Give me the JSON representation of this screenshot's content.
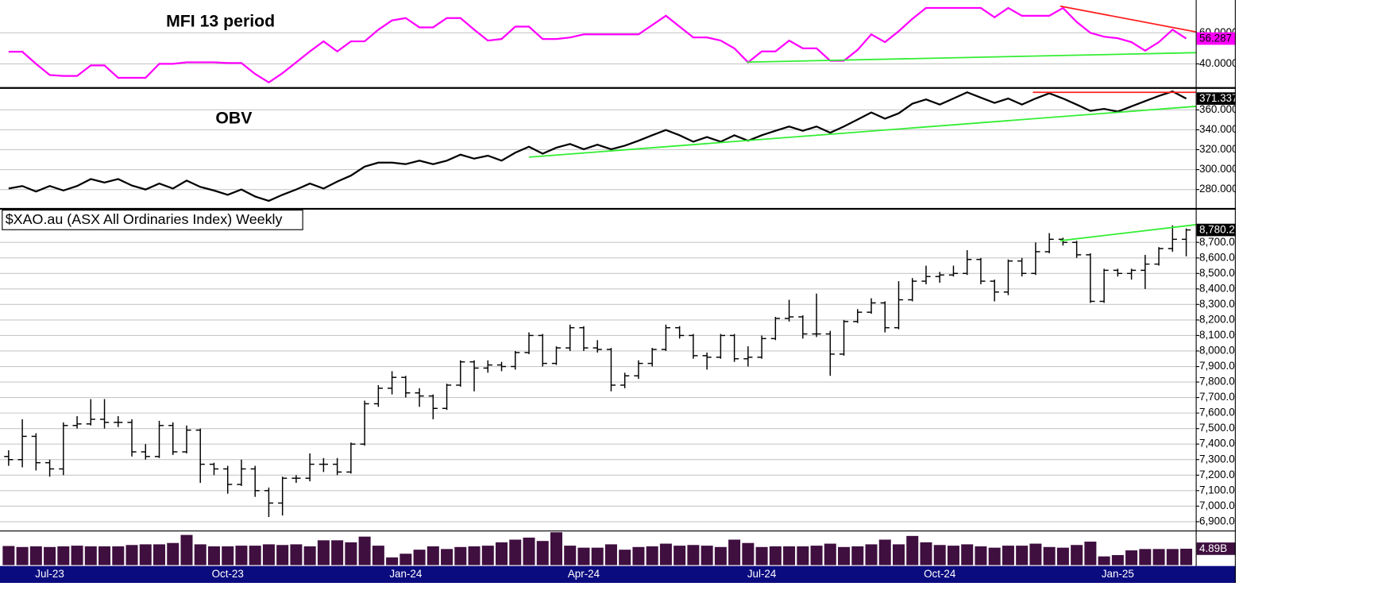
{
  "chart_data": [
    {
      "type": "line",
      "title": "MFI 13 period",
      "series": [
        {
          "color": "#ff00ff",
          "values": [
            47.8,
            47.8,
            40,
            32.8,
            32.2,
            32.2,
            39,
            39,
            31,
            31,
            31,
            40,
            40,
            41,
            41,
            41,
            40.5,
            40.5,
            33.5,
            28,
            34,
            41,
            48,
            54.5,
            48,
            54.5,
            54.5,
            62,
            68,
            69.5,
            63.5,
            63.5,
            69.5,
            69.5,
            62,
            55,
            56,
            64,
            64,
            56,
            56,
            57,
            59,
            59,
            59,
            59,
            59,
            65,
            71,
            64,
            57,
            57,
            55,
            50,
            41,
            48,
            48,
            55,
            50,
            50,
            42,
            42,
            49,
            59,
            54,
            61,
            69,
            76,
            76,
            76,
            76,
            76,
            70,
            76,
            71,
            71,
            71,
            76,
            67,
            60,
            57.5,
            56.5,
            54,
            48.5,
            54,
            62,
            56.287
          ]
        }
      ],
      "ylim": [
        25.6,
        80
      ],
      "yticks": [
        {
          "value": 40,
          "label": "40.0000"
        },
        {
          "value": 60,
          "label": "60.0000"
        }
      ],
      "grid": true,
      "last_label": {
        "value": 56.287,
        "label": "56.287"
      },
      "trendlines": [
        {
          "color": "#ff2020",
          "x": [
            76.8,
            86.7
          ],
          "values": [
            77.2,
            60.6
          ]
        },
        {
          "color": "#33ee33",
          "x": [
            53.9,
            86.7
          ],
          "values": [
            41.1,
            47.2
          ]
        }
      ]
    },
    {
      "type": "line",
      "title": "OBV",
      "series": [
        {
          "color": "#000000",
          "values": [
            281,
            283.5,
            278,
            283.5,
            279,
            283.5,
            290.5,
            287,
            290.5,
            284,
            280,
            286,
            281,
            289,
            282.6,
            279,
            274.7,
            280,
            273,
            268.6,
            274.7,
            280,
            286,
            281,
            288,
            294,
            303,
            307,
            307,
            305.5,
            309,
            305.5,
            309,
            315,
            311,
            314,
            309,
            317,
            323,
            316,
            322,
            325.7,
            320.4,
            325,
            320.4,
            324,
            329,
            334.5,
            339.8,
            334.5,
            328,
            332.7,
            328,
            334.5,
            329,
            334.5,
            339,
            343.3,
            339,
            343.3,
            337,
            343.3,
            350.3,
            357.4,
            351.2,
            356.5,
            366.2,
            370.5,
            365.3,
            371.4,
            377.6,
            372.3,
            367,
            371.4,
            365.3,
            371.4,
            376.7,
            371.4,
            365.3,
            359,
            361,
            358.2,
            363.5,
            368.8,
            374,
            378.5,
            371.337
          ]
        }
      ],
      "ylim": [
        262.4,
        380.2
      ],
      "yticks": [
        {
          "value": 280,
          "label": "280.000"
        },
        {
          "value": 300,
          "label": "300.000"
        },
        {
          "value": 320,
          "label": "320.000"
        },
        {
          "value": 340,
          "label": "340.000"
        },
        {
          "value": 360,
          "label": "360.000"
        }
      ],
      "grid": true,
      "last_label": {
        "value": 371.337,
        "label": "371.337"
      },
      "trendlines": [
        {
          "color": "#ff2020",
          "x": [
            74.8,
            86.7
          ],
          "values": [
            377.6,
            377.6
          ]
        },
        {
          "color": "#33ee33",
          "x": [
            38,
            86.7
          ],
          "values": [
            312.5,
            363.5
          ]
        }
      ]
    },
    {
      "type": "ohlc",
      "legend": "$XAO.au (ASX All Ordinaries Index) Weekly",
      "color": "#000000",
      "open": [
        7320,
        7300,
        7450,
        7280,
        7240,
        7520,
        7530,
        7560,
        7540,
        7540,
        7350,
        7320,
        7520,
        7350,
        7490,
        7270,
        7240,
        7140,
        7240,
        7100,
        7020,
        7180,
        7180,
        7270,
        7270,
        7220,
        7400,
        7660,
        7760,
        7830,
        7730,
        7710,
        7630,
        7780,
        7930,
        7890,
        7910,
        7900,
        7990,
        8100,
        7920,
        8020,
        8150,
        8020,
        8010,
        7780,
        7840,
        7920,
        8010,
        8150,
        8100,
        7970,
        7960,
        8100,
        7950,
        7960,
        8080,
        8210,
        8220,
        8110,
        8110,
        7980,
        8190,
        8250,
        8310,
        8150,
        8330,
        8450,
        8480,
        8490,
        8500,
        8590,
        8450,
        8380,
        8580,
        8500,
        8640,
        8720,
        8700,
        8620,
        8320,
        8520,
        8500,
        8520,
        8560,
        8660,
        8720
      ],
      "high": [
        7360,
        7560,
        7470,
        7300,
        7540,
        7580,
        7690,
        7690,
        7580,
        7560,
        7400,
        7550,
        7540,
        7520,
        7500,
        7280,
        7260,
        7300,
        7260,
        7120,
        7190,
        7200,
        7340,
        7310,
        7310,
        7410,
        7680,
        7780,
        7870,
        7840,
        7760,
        7720,
        7790,
        7940,
        7940,
        7940,
        7930,
        8000,
        8120,
        8110,
        8030,
        8170,
        8160,
        8070,
        8020,
        7860,
        7940,
        8020,
        8170,
        8160,
        8110,
        7990,
        8110,
        8110,
        8030,
        8100,
        8220,
        8330,
        8230,
        8370,
        8130,
        8200,
        8270,
        8340,
        8320,
        8450,
        8470,
        8550,
        8510,
        8550,
        8650,
        8600,
        8460,
        8590,
        8600,
        8700,
        8760,
        8730,
        8710,
        8630,
        8530,
        8530,
        8530,
        8620,
        8670,
        8810,
        8790
      ],
      "low": [
        7260,
        7250,
        7230,
        7190,
        7200,
        7500,
        7520,
        7500,
        7510,
        7320,
        7300,
        7310,
        7330,
        7340,
        7150,
        7200,
        7080,
        7130,
        7060,
        6930,
        6940,
        7150,
        7160,
        7220,
        7200,
        7210,
        7390,
        7640,
        7720,
        7700,
        7640,
        7560,
        7620,
        7770,
        7740,
        7860,
        7870,
        7880,
        7980,
        7900,
        7910,
        8000,
        8000,
        7990,
        7740,
        7760,
        7820,
        7900,
        8000,
        8080,
        7950,
        7880,
        7950,
        7930,
        7900,
        7950,
        8070,
        8190,
        8080,
        8090,
        7840,
        7970,
        8180,
        8240,
        8120,
        8140,
        8320,
        8430,
        8440,
        8480,
        8490,
        8430,
        8320,
        8360,
        8480,
        8490,
        8630,
        8680,
        8600,
        8310,
        8310,
        8480,
        8460,
        8400,
        8550,
        8640,
        8610
      ],
      "close": [
        7300,
        7450,
        7280,
        7240,
        7520,
        7530,
        7560,
        7540,
        7540,
        7350,
        7320,
        7520,
        7350,
        7490,
        7270,
        7240,
        7140,
        7240,
        7100,
        7020,
        7180,
        7180,
        7270,
        7270,
        7220,
        7400,
        7660,
        7760,
        7830,
        7730,
        7710,
        7630,
        7780,
        7930,
        7890,
        7910,
        7900,
        7990,
        8100,
        7920,
        8020,
        8150,
        8020,
        8010,
        7780,
        7840,
        7920,
        8010,
        8150,
        8100,
        7970,
        7960,
        8100,
        7950,
        7960,
        8080,
        8210,
        8220,
        8110,
        8110,
        7980,
        8190,
        8250,
        8310,
        8150,
        8330,
        8450,
        8480,
        8490,
        8500,
        8590,
        8450,
        8380,
        8580,
        8500,
        8640,
        8720,
        8700,
        8620,
        8320,
        8520,
        8500,
        8520,
        8560,
        8660,
        8720,
        8780.2
      ],
      "ylim": [
        6849,
        8905
      ],
      "yticks": [
        {
          "value": 6900,
          "label": "6,900.0"
        },
        {
          "value": 7000,
          "label": "7,000.0"
        },
        {
          "value": 7100,
          "label": "7,100.0"
        },
        {
          "value": 7200,
          "label": "7,200.0"
        },
        {
          "value": 7300,
          "label": "7,300.0"
        },
        {
          "value": 7400,
          "label": "7,400.0"
        },
        {
          "value": 7500,
          "label": "7,500.0"
        },
        {
          "value": 7600,
          "label": "7,600.0"
        },
        {
          "value": 7700,
          "label": "7,700.0"
        },
        {
          "value": 7800,
          "label": "7,800.0"
        },
        {
          "value": 7900,
          "label": "7,900.0"
        },
        {
          "value": 8000,
          "label": "8,000.0"
        },
        {
          "value": 8100,
          "label": "8,100.0"
        },
        {
          "value": 8200,
          "label": "8,200.0"
        },
        {
          "value": 8300,
          "label": "8,300.0"
        },
        {
          "value": 8400,
          "label": "8,400.0"
        },
        {
          "value": 8500,
          "label": "8,500.0"
        },
        {
          "value": 8600,
          "label": "8,600.0"
        },
        {
          "value": 8700,
          "label": "8,700.0"
        }
      ],
      "grid": true,
      "last_label": {
        "value": 8780.2,
        "label": "8,780.2"
      },
      "trendlines": [
        {
          "color": "#33ee33",
          "x": [
            76.8,
            86.7
          ],
          "values": [
            8711,
            8814
          ]
        }
      ]
    },
    {
      "type": "bar",
      "color": "#3f0f3f",
      "categories": [
        null,
        null,
        null,
        "Jul-23",
        null,
        null,
        null,
        null,
        null,
        null,
        null,
        null,
        null,
        null,
        null,
        null,
        "Oct-23",
        null,
        null,
        null,
        null,
        null,
        null,
        null,
        null,
        null,
        null,
        null,
        null,
        "Jan-24",
        null,
        null,
        null,
        null,
        null,
        null,
        null,
        null,
        null,
        null,
        null,
        null,
        "Apr-24",
        null,
        null,
        null,
        null,
        null,
        null,
        null,
        null,
        null,
        null,
        null,
        null,
        "Jul-24",
        null,
        null,
        null,
        null,
        null,
        null,
        null,
        null,
        null,
        null,
        null,
        null,
        "Oct-24",
        null,
        null,
        null,
        null,
        null,
        null,
        null,
        null,
        null,
        null,
        null,
        null,
        "Jan-25",
        null,
        null,
        null,
        null,
        null
      ],
      "values": [
        5.7,
        5.4,
        5.6,
        5.4,
        5.6,
        5.8,
        5.6,
        5.6,
        5.6,
        6.0,
        6.2,
        6.2,
        6.6,
        9.0,
        6.2,
        5.6,
        5.6,
        5.8,
        5.8,
        6.2,
        6.0,
        6.2,
        5.6,
        7.4,
        7.4,
        6.8,
        8.5,
        5.8,
        2.3,
        3.4,
        4.6,
        5.6,
        4.8,
        5.4,
        5.6,
        5.8,
        6.8,
        7.6,
        8.2,
        7.2,
        9.8,
        5.8,
        5.2,
        5.2,
        6.2,
        4.6,
        5.4,
        5.6,
        6.4,
        5.8,
        6.0,
        5.8,
        5.4,
        7.6,
        6.6,
        5.4,
        5.6,
        5.6,
        5.6,
        5.8,
        6.4,
        5.4,
        5.6,
        6.2,
        7.6,
        6.2,
        8.7,
        6.8,
        6.0,
        5.8,
        6.2,
        5.6,
        5.2,
        5.8,
        5.8,
        6.4,
        5.4,
        5.2,
        6.0,
        7.0,
        2.6,
        3.0,
        4.4,
        4.8,
        4.8,
        4.8,
        4.89
      ],
      "ylim": [
        0,
        9.8
      ],
      "last_label": {
        "value": 4.89,
        "label": "4.89B"
      }
    }
  ]
}
